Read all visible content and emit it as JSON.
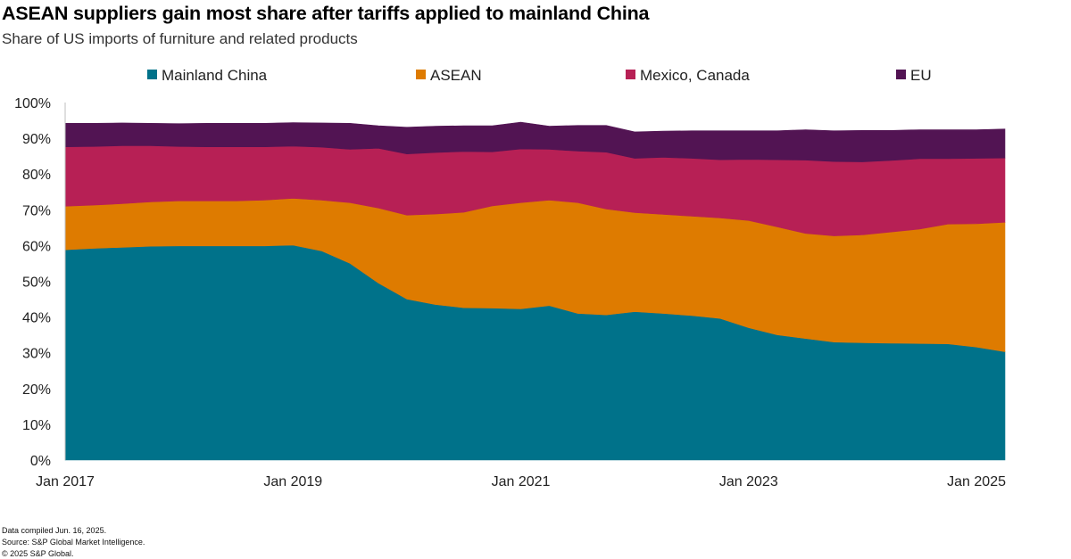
{
  "title": "ASEAN suppliers gain most share after tariffs applied to mainland China",
  "subtitle": "Share of US imports of furniture and related products",
  "footnotes": {
    "compiled": "Data compiled Jun. 16, 2025.",
    "source": "Source: S&P Global Market Intelligence.",
    "copyright": "© 2025 S&P Global."
  },
  "chart_data": {
    "type": "area",
    "stacked": true,
    "title": "ASEAN suppliers gain most share after tariffs applied to mainland China",
    "subtitle": "Share of US imports of furniture and related products",
    "xlabel": "",
    "ylabel": "",
    "ylim": [
      0,
      100
    ],
    "y_ticks": [
      0,
      10,
      20,
      30,
      40,
      50,
      60,
      70,
      80,
      90,
      100
    ],
    "y_tick_format": "{v}%",
    "x_range": [
      2017.0,
      2025.25
    ],
    "x_ticks": [
      {
        "x": 2017.0,
        "label": "Jan 2017"
      },
      {
        "x": 2019.0,
        "label": "Jan 2019"
      },
      {
        "x": 2021.0,
        "label": "Jan 2021"
      },
      {
        "x": 2023.0,
        "label": "Jan 2023"
      },
      {
        "x": 2025.0,
        "label": "Jan 2025"
      }
    ],
    "legend_position": "top",
    "x": [
      2017.0,
      2017.25,
      2017.5,
      2017.75,
      2018.0,
      2018.25,
      2018.5,
      2018.75,
      2019.0,
      2019.25,
      2019.5,
      2019.75,
      2020.0,
      2020.25,
      2020.5,
      2020.75,
      2021.0,
      2021.25,
      2021.5,
      2021.75,
      2022.0,
      2022.25,
      2022.5,
      2022.75,
      2023.0,
      2023.25,
      2023.5,
      2023.75,
      2024.0,
      2024.25,
      2024.5,
      2024.75,
      2025.0,
      2025.25
    ],
    "series": [
      {
        "name": "Mainland China",
        "color": "#00728a",
        "values": [
          58.8,
          59.2,
          59.5,
          59.8,
          59.9,
          59.9,
          59.9,
          59.9,
          60.1,
          58.5,
          55.0,
          49.5,
          45.0,
          43.5,
          42.6,
          42.5,
          42.3,
          43.2,
          41.0,
          40.6,
          41.5,
          41.0,
          40.4,
          39.6,
          37.0,
          35.0,
          34.0,
          33.0,
          32.8,
          32.7,
          32.6,
          32.5,
          31.6,
          30.3
        ]
      },
      {
        "name": "ASEAN",
        "color": "#de7b00",
        "values": [
          12.2,
          12.1,
          12.2,
          12.4,
          12.6,
          12.6,
          12.6,
          12.8,
          13.1,
          14.2,
          17.0,
          21.0,
          23.5,
          25.3,
          26.7,
          28.6,
          29.7,
          29.5,
          31.0,
          29.6,
          27.7,
          27.7,
          27.8,
          28.1,
          30.0,
          30.2,
          29.4,
          29.7,
          30.2,
          31.1,
          32.0,
          33.5,
          34.5,
          36.2
        ]
      },
      {
        "name": "Mexico, Canada",
        "color": "#b72055",
        "values": [
          16.6,
          16.4,
          16.2,
          15.7,
          15.2,
          15.1,
          15.1,
          14.9,
          14.6,
          14.8,
          14.9,
          16.7,
          17.1,
          17.2,
          17.0,
          15.1,
          15.0,
          14.2,
          14.4,
          15.9,
          15.2,
          16.0,
          16.2,
          16.3,
          17.1,
          18.8,
          20.5,
          20.8,
          20.4,
          20.0,
          19.7,
          18.3,
          18.3,
          18.0
        ]
      },
      {
        "name": "EU",
        "color": "#521453",
        "values": [
          6.6,
          6.5,
          6.4,
          6.3,
          6.4,
          6.6,
          6.6,
          6.6,
          6.6,
          6.8,
          7.3,
          6.3,
          7.5,
          7.4,
          7.2,
          7.3,
          7.5,
          6.5,
          7.2,
          7.5,
          7.4,
          7.3,
          7.7,
          8.1,
          8.0,
          8.1,
          8.5,
          8.6,
          8.8,
          8.4,
          8.1,
          8.1,
          8.0,
          8.1
        ]
      }
    ]
  }
}
